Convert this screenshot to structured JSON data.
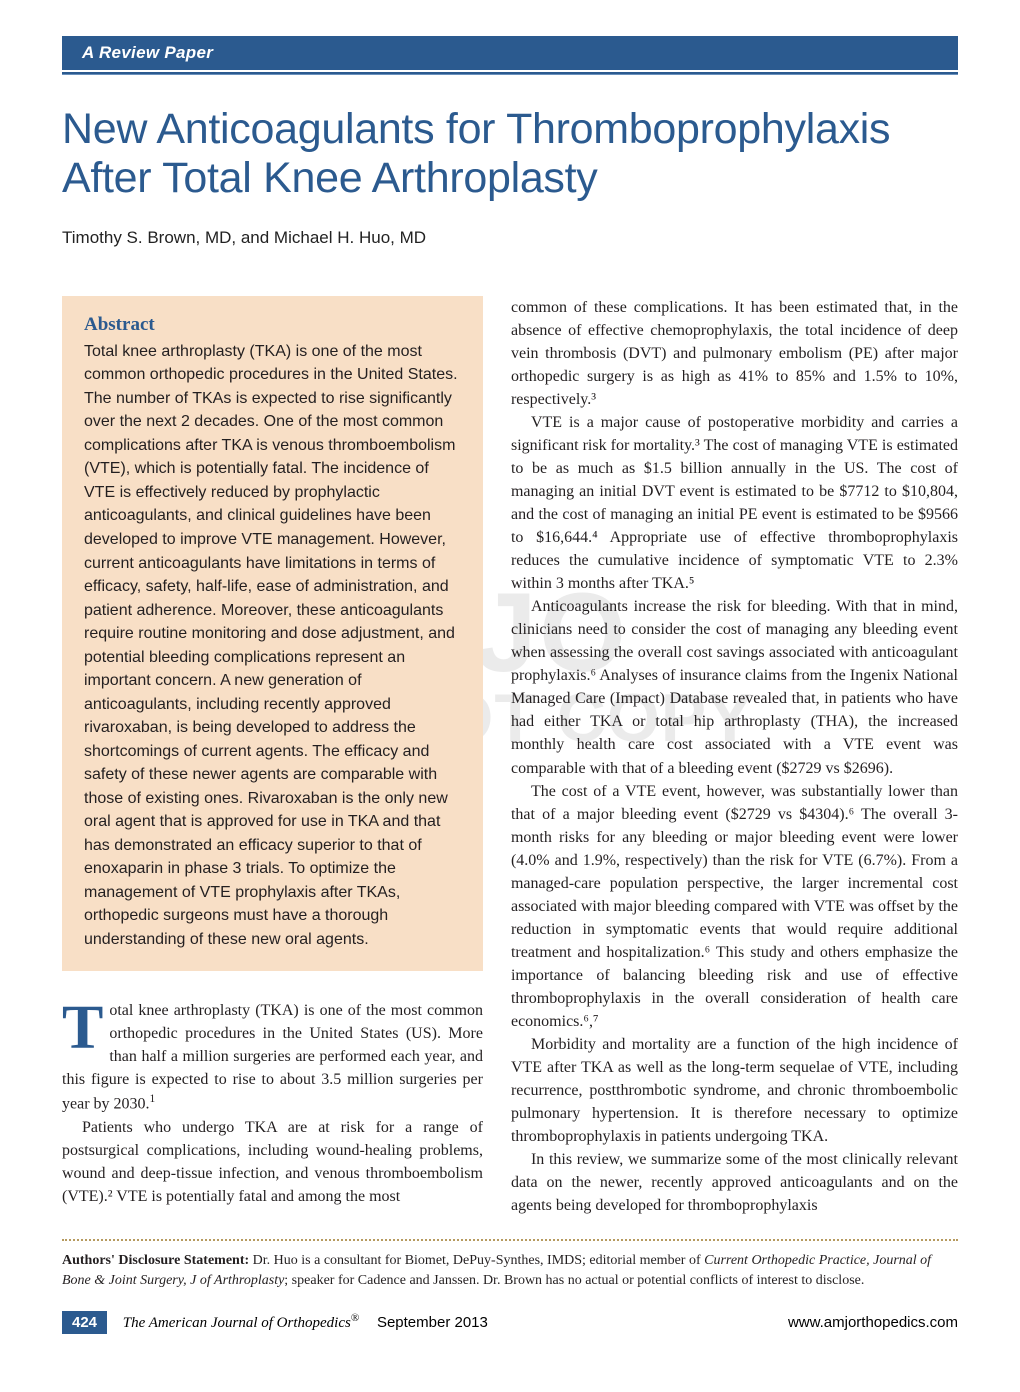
{
  "header": {
    "section_label": "A Review Paper"
  },
  "title": "New Anticoagulants for Thromboprophylaxis After Total Knee Arthroplasty",
  "authors": "Timothy S. Brown, MD, and Michael H. Huo, MD",
  "abstract": {
    "heading": "Abstract",
    "text": "Total knee arthroplasty (TKA) is one of the most common orthopedic procedures in the United States. The number of TKAs is expected to rise significantly over the next 2 decades. One of the most common complications after TKA is venous thromboembolism (VTE), which is potentially fatal. The incidence of VTE is effectively reduced by prophylactic anticoagulants, and clinical guidelines have been developed to improve VTE management. However, current anticoagulants have limitations in terms of efficacy, safety, half-life, ease of administration, and patient adherence. Moreover, these anticoagulants require routine monitoring and dose adjustment, and potential bleeding complications represent an important concern. A new generation of anticoagulants, including recently approved rivaroxaban, is being developed to address the shortcomings of current agents. The efficacy and safety of these newer agents are comparable with those of existing ones. Rivaroxaban is the only new oral agent that is approved for use in TKA and that has demonstrated an efficacy superior to that of enoxaparin in phase 3 trials. To optimize the management of VTE prophylaxis after TKAs, orthopedic surgeons must have a thorough understanding of these new oral agents."
  },
  "body": {
    "left_p1_after_dropcap": "otal knee arthroplasty (TKA) is one of the most common orthopedic procedures in the United States (US). More than half a million surgeries are performed each year, and this figure is expected to rise to about 3.5 million surgeries per year by 2030.",
    "left_p2": "Patients who undergo TKA are at risk for a range of postsurgical complications, including wound-healing problems, wound and deep-tissue infection, and venous thromboembolism (VTE).² VTE is potentially fatal and among the most",
    "right_p1": "common of these complications. It has been estimated that, in the absence of effective chemoprophylaxis, the total incidence of deep vein thrombosis (DVT) and pulmonary embolism (PE) after major orthopedic surgery is as high as 41% to 85% and 1.5% to 10%, respectively.³",
    "right_p2": "VTE is a major cause of postoperative morbidity and carries a significant risk for mortality.³ The cost of managing VTE is estimated to be as much as $1.5 billion annually in the US. The cost of managing an initial DVT event is estimated to be $7712 to $10,804, and the cost of managing an initial PE event is estimated to be $9566 to $16,644.⁴ Appropriate use of effective thromboprophylaxis reduces the cumulative incidence of symptomatic VTE to 2.3% within 3 months after TKA.⁵",
    "right_p3": "Anticoagulants increase the risk for bleeding. With that in mind, clinicians need to consider the cost of managing any bleeding event when assessing the overall cost savings associated with anticoagulant prophylaxis.⁶ Analyses of insurance claims from the Ingenix National Managed Care (Impact) Database revealed that, in patients who have had either TKA or total hip arthroplasty (THA), the increased monthly health care cost associated with a VTE event was comparable with that of a bleeding event ($2729 vs $2696).",
    "right_p4": "The cost of a VTE event, however, was substantially lower than that of a major bleeding event ($2729 vs $4304).⁶ The overall 3-month risks for any bleeding or major bleeding event were lower (4.0% and 1.9%, respectively) than the risk for VTE (6.7%). From a managed-care population perspective, the larger incremental cost associated with major bleeding compared with VTE was offset by the reduction in symptomatic events that would require additional treatment and hospitalization.⁶ This study and others emphasize the importance of balancing bleeding risk and use of effective thromboprophylaxis in the overall consideration of health care economics.⁶,⁷",
    "right_p5": "Morbidity and mortality are a function of the high incidence of VTE after TKA as well as the long-term sequelae of VTE, including recurrence, postthrombotic syndrome, and chronic thromboembolic pulmonary hypertension. It is therefore necessary to optimize thromboprophylaxis in patients undergoing TKA.",
    "right_p6": "In this review, we summarize some of the most clinically relevant data on the newer, recently approved anticoagulants and on the agents being developed for thromboprophylaxis"
  },
  "watermark": {
    "line1": "AJO",
    "line2": "DO NOT COPY"
  },
  "disclosure": {
    "label": "Authors' Disclosure Statement:",
    "text_1": " Dr. Huo is a consultant for Biomet, DePuy-Synthes, IMDS; editorial member of ",
    "ital_1": "Current Orthopedic Practice, Journal of Bone & Joint Surgery, J of Arthroplasty",
    "text_2": "; speaker for Cadence and Janssen. Dr. Brown has no actual or potential conflicts of interest to disclose."
  },
  "footer": {
    "page_number": "424",
    "journal": "The American Journal of Orthopedics",
    "reg_mark": "®",
    "issue_date": "September 2013",
    "url": "www.amjorthopedics.com"
  },
  "colors": {
    "brand_blue": "#2b5a8f",
    "abstract_bg": "#f8dfc6",
    "dotted_rule": "#b69a5f",
    "text": "#231f20"
  }
}
